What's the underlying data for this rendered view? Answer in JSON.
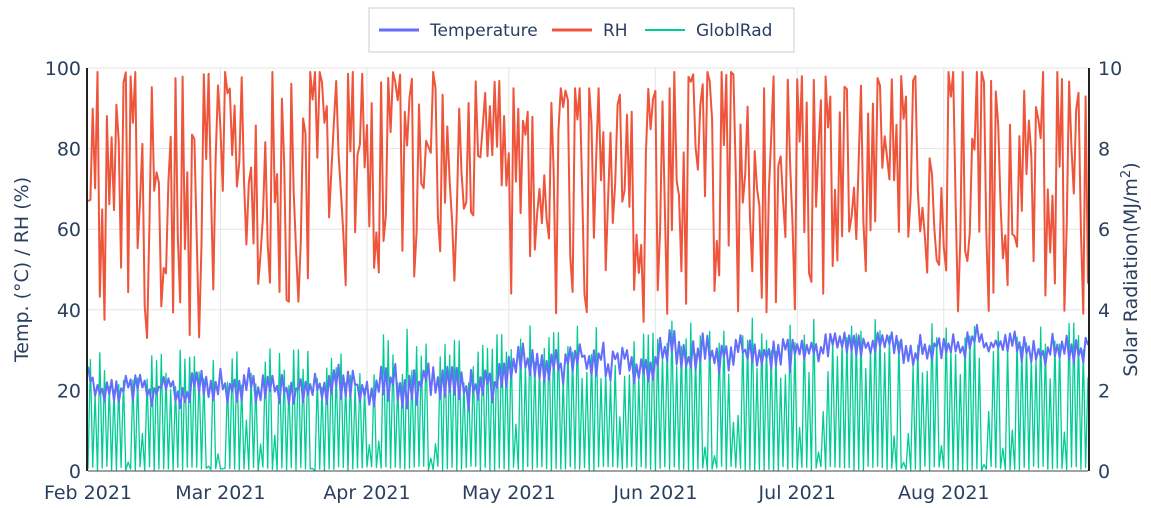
{
  "chart_data": {
    "type": "line",
    "x_range": [
      "2021-02-01",
      "2021-08-31"
    ],
    "x_ticks": [
      "2021-02-01",
      "2021-03-01",
      "2021-04-01",
      "2021-05-01",
      "2021-06-01",
      "2021-07-01",
      "2021-08-01"
    ],
    "x_tick_labels": [
      "Feb 2021",
      "Mar 2021",
      "Apr 2021",
      "May 2021",
      "Jun 2021",
      "Jul 2021",
      "Aug 2021"
    ],
    "y_left": {
      "label": "Temp. (°C) / RH (%)",
      "range": [
        0,
        100
      ],
      "ticks": [
        "0",
        "20",
        "40",
        "60",
        "80",
        "100"
      ]
    },
    "y_right": {
      "label": "Solar Radiation(MJ/m²)",
      "range": [
        0,
        10
      ],
      "ticks": [
        "0",
        "2",
        "4",
        "6",
        "8",
        "10"
      ]
    },
    "grid": true,
    "legend_position": "top-center",
    "series": [
      {
        "name": "Temperature",
        "axis": "left",
        "color": "#636efa",
        "sample_interval_hours": 12,
        "approx_values": [
          {
            "month": "Feb",
            "min": 15,
            "max": 27
          },
          {
            "month": "Mar",
            "min": 14,
            "max": 28
          },
          {
            "month": "Apr",
            "min": 13,
            "max": 30
          },
          {
            "month": "May",
            "min": 20,
            "max": 35
          },
          {
            "month": "Jun",
            "min": 22,
            "max": 37
          },
          {
            "month": "Jul",
            "min": 25,
            "max": 36
          },
          {
            "month": "Aug",
            "min": 25,
            "max": 37
          }
        ]
      },
      {
        "name": "RH",
        "axis": "left",
        "color": "#ef553b",
        "sample_interval_hours": 12,
        "approx_values": [
          {
            "month": "Feb",
            "min": 33,
            "max": 99
          },
          {
            "month": "Mar",
            "min": 42,
            "max": 99
          },
          {
            "month": "Apr",
            "min": 45,
            "max": 99
          },
          {
            "month": "May",
            "min": 37,
            "max": 95
          },
          {
            "month": "Jun",
            "min": 38,
            "max": 99
          },
          {
            "month": "Jul",
            "min": 44,
            "max": 98
          },
          {
            "month": "Aug",
            "min": 39,
            "max": 99
          }
        ]
      },
      {
        "name": "GloblRad",
        "axis": "right",
        "color": "#00cc96",
        "sample_interval_hours": 12,
        "approx_values": [
          {
            "month": "Feb",
            "min": 0,
            "max": 3.0
          },
          {
            "month": "Mar",
            "min": 0,
            "max": 3.2
          },
          {
            "month": "Apr",
            "min": 0,
            "max": 3.6
          },
          {
            "month": "May",
            "min": 0,
            "max": 3.7
          },
          {
            "month": "Jun",
            "min": 0,
            "max": 3.8
          },
          {
            "month": "Jul",
            "min": 0,
            "max": 3.9
          },
          {
            "month": "Aug",
            "min": 0,
            "max": 3.7
          }
        ]
      }
    ]
  }
}
